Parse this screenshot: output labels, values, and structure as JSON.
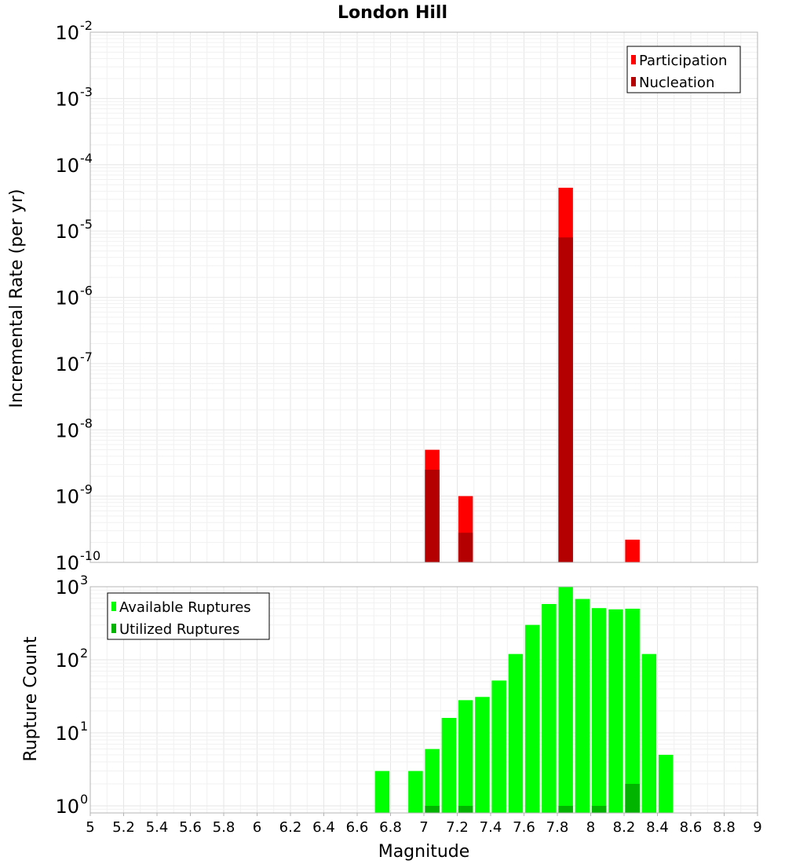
{
  "chart_data": [
    {
      "type": "bar",
      "title": "London Hill",
      "xlabel": "",
      "ylabel": "Incremental Rate (per yr)",
      "y_scale": "log",
      "ylim": [
        1e-10,
        0.01
      ],
      "xlim": [
        5,
        9
      ],
      "grid": true,
      "legend_position": "top-right",
      "y_ticks": [
        {
          "base": "10",
          "exp": "-2"
        },
        {
          "base": "10",
          "exp": "-3"
        },
        {
          "base": "10",
          "exp": "-4"
        },
        {
          "base": "10",
          "exp": "-5"
        },
        {
          "base": "10",
          "exp": "-6"
        },
        {
          "base": "10",
          "exp": "-7"
        },
        {
          "base": "10",
          "exp": "-8"
        },
        {
          "base": "10",
          "exp": "-9"
        },
        {
          "base": "10",
          "exp": "-10"
        }
      ],
      "series": [
        {
          "name": "Participation",
          "color": "#ff0000",
          "points": [
            {
              "x": 7.05,
              "y": 5e-09
            },
            {
              "x": 7.25,
              "y": 1e-09
            },
            {
              "x": 7.85,
              "y": 4.5e-05
            },
            {
              "x": 8.25,
              "y": 2.2e-10
            }
          ]
        },
        {
          "name": "Nucleation",
          "color": "#b40000",
          "points": [
            {
              "x": 7.05,
              "y": 2.5e-09
            },
            {
              "x": 7.25,
              "y": 2.8e-10
            },
            {
              "x": 7.85,
              "y": 8e-06
            }
          ]
        }
      ]
    },
    {
      "type": "bar",
      "title": "",
      "xlabel": "Magnitude",
      "ylabel": "Rupture Count",
      "y_scale": "log",
      "ylim": [
        0.8,
        1000
      ],
      "xlim": [
        5,
        9
      ],
      "grid": true,
      "legend_position": "top-left",
      "x_ticks": [
        "5",
        "5.2",
        "5.4",
        "5.6",
        "5.8",
        "6",
        "6.2",
        "6.4",
        "6.6",
        "6.8",
        "7",
        "7.2",
        "7.4",
        "7.6",
        "7.8",
        "8",
        "8.2",
        "8.4",
        "8.6",
        "8.8",
        "9"
      ],
      "y_ticks": [
        {
          "base": "10",
          "exp": "3"
        },
        {
          "base": "10",
          "exp": "2"
        },
        {
          "base": "10",
          "exp": "1"
        },
        {
          "base": "10",
          "exp": "0"
        }
      ],
      "series": [
        {
          "name": "Available Ruptures",
          "color": "#00ff00",
          "points": [
            {
              "x": 6.75,
              "y": 3
            },
            {
              "x": 6.95,
              "y": 3
            },
            {
              "x": 7.05,
              "y": 6
            },
            {
              "x": 7.15,
              "y": 16
            },
            {
              "x": 7.25,
              "y": 28
            },
            {
              "x": 7.35,
              "y": 31
            },
            {
              "x": 7.45,
              "y": 52
            },
            {
              "x": 7.55,
              "y": 120
            },
            {
              "x": 7.65,
              "y": 300
            },
            {
              "x": 7.75,
              "y": 580
            },
            {
              "x": 7.85,
              "y": 1000
            },
            {
              "x": 7.95,
              "y": 680
            },
            {
              "x": 8.05,
              "y": 510
            },
            {
              "x": 8.15,
              "y": 490
            },
            {
              "x": 8.25,
              "y": 500
            },
            {
              "x": 8.35,
              "y": 120
            },
            {
              "x": 8.45,
              "y": 5
            }
          ]
        },
        {
          "name": "Utilized Ruptures",
          "color": "#00b400",
          "points": [
            {
              "x": 7.05,
              "y": 1
            },
            {
              "x": 7.25,
              "y": 1
            },
            {
              "x": 7.85,
              "y": 1
            },
            {
              "x": 8.05,
              "y": 1
            },
            {
              "x": 8.25,
              "y": 2
            }
          ]
        }
      ]
    }
  ]
}
